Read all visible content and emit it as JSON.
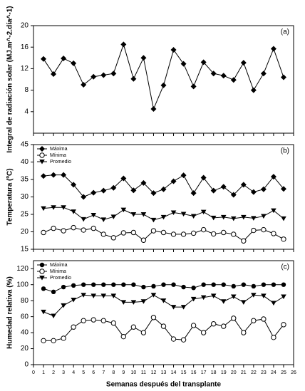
{
  "chart_data": [
    {
      "type": "line",
      "annotation": "(a)",
      "ylabel": "Integral de radiación solar (MJ.m^-2.día^-1)",
      "x": [
        1,
        2,
        3,
        4,
        5,
        6,
        7,
        8,
        9,
        10,
        11,
        12,
        13,
        14,
        15,
        16,
        17,
        18,
        19,
        20,
        21,
        22,
        23,
        24,
        25
      ],
      "xlim": [
        0,
        26
      ],
      "ylim": [
        0,
        20
      ],
      "yticks": [
        4,
        8,
        12,
        16,
        20
      ],
      "series": [
        {
          "color": "#000000",
          "marker": "diamond",
          "values": [
            13.8,
            11.0,
            13.9,
            13.0,
            9.0,
            10.5,
            10.8,
            11.1,
            16.5,
            10.1,
            14.0,
            4.5,
            8.9,
            15.5,
            12.9,
            8.7,
            13.2,
            11.1,
            10.7,
            9.9,
            13.1,
            8.0,
            11.1,
            15.7,
            10.4
          ]
        }
      ]
    },
    {
      "type": "line",
      "annotation": "(b)",
      "ylabel": "Temperatura (ºC)",
      "x": [
        1,
        2,
        3,
        4,
        5,
        6,
        7,
        8,
        9,
        10,
        11,
        12,
        13,
        14,
        15,
        16,
        17,
        18,
        19,
        20,
        21,
        22,
        23,
        24,
        25
      ],
      "xlim": [
        0,
        26
      ],
      "ylim": [
        15,
        45
      ],
      "yticks": [
        15,
        20,
        25,
        30,
        35,
        40,
        45
      ],
      "series": [
        {
          "name": "Máxima",
          "color": "#000000",
          "marker": "diamond",
          "values": [
            36.0,
            36.3,
            36.3,
            33.5,
            30.0,
            31.2,
            31.8,
            32.6,
            35.3,
            31.9,
            34.0,
            31.1,
            32.2,
            34.5,
            36.2,
            31.1,
            35.5,
            31.8,
            32.9,
            30.6,
            33.5,
            31.4,
            32.2,
            35.8,
            32.3
          ]
        },
        {
          "name": "Mínima",
          "color": "#000000",
          "marker": "open-circle",
          "values": [
            19.8,
            21.0,
            20.3,
            21.2,
            20.5,
            21.0,
            19.3,
            18.3,
            19.7,
            19.8,
            17.6,
            20.3,
            19.8,
            19.3,
            19.3,
            19.6,
            20.6,
            19.4,
            19.8,
            19.3,
            17.4,
            20.4,
            20.6,
            19.5,
            17.9
          ]
        },
        {
          "name": "Promedio",
          "color": "#000000",
          "marker": "triangle-down",
          "values": [
            26.7,
            27.0,
            27.0,
            25.8,
            23.6,
            24.8,
            23.5,
            24.3,
            26.3,
            25.0,
            25.0,
            23.4,
            24.2,
            25.5,
            25.1,
            24.5,
            25.7,
            24.0,
            24.2,
            23.8,
            24.2,
            23.9,
            24.5,
            26.1,
            23.8
          ]
        }
      ]
    },
    {
      "type": "line",
      "annotation": "(c)",
      "ylabel": "Humedad relativa (%)",
      "xlabel": "Semanas después del transplante",
      "x": [
        1,
        2,
        3,
        4,
        5,
        6,
        7,
        8,
        9,
        10,
        11,
        12,
        13,
        14,
        15,
        16,
        17,
        18,
        19,
        20,
        21,
        22,
        23,
        24,
        25
      ],
      "xlim": [
        0,
        26
      ],
      "xticks": [
        0,
        1,
        2,
        3,
        4,
        5,
        6,
        7,
        8,
        9,
        10,
        11,
        12,
        13,
        14,
        15,
        16,
        17,
        18,
        19,
        20,
        21,
        22,
        23,
        24,
        25,
        26
      ],
      "ylim": [
        0,
        130
      ],
      "yticks": [
        0,
        20,
        40,
        60,
        80,
        100,
        120
      ],
      "series": [
        {
          "name": "Máxima",
          "color": "#000000",
          "marker": "circle",
          "values": [
            95,
            91,
            97,
            99,
            100,
            100,
            100,
            100,
            100,
            100,
            97,
            98,
            100,
            100,
            97,
            96,
            100,
            100,
            100,
            98,
            100,
            98,
            100,
            100,
            100
          ]
        },
        {
          "name": "Mínima",
          "color": "#000000",
          "marker": "open-circle",
          "values": [
            30,
            30,
            33,
            47,
            55,
            56,
            55,
            52,
            35,
            47,
            40,
            59,
            48,
            32,
            31,
            49,
            40,
            51,
            48,
            58,
            40,
            55,
            57,
            34,
            50
          ]
        },
        {
          "name": "Promedio",
          "color": "#000000",
          "marker": "triangle-down",
          "values": [
            66,
            61,
            74,
            81,
            87,
            86,
            86,
            86,
            78,
            78,
            79,
            87,
            80,
            72,
            72,
            82,
            84,
            86,
            79,
            85,
            78,
            87,
            86,
            77,
            85
          ]
        }
      ]
    }
  ]
}
